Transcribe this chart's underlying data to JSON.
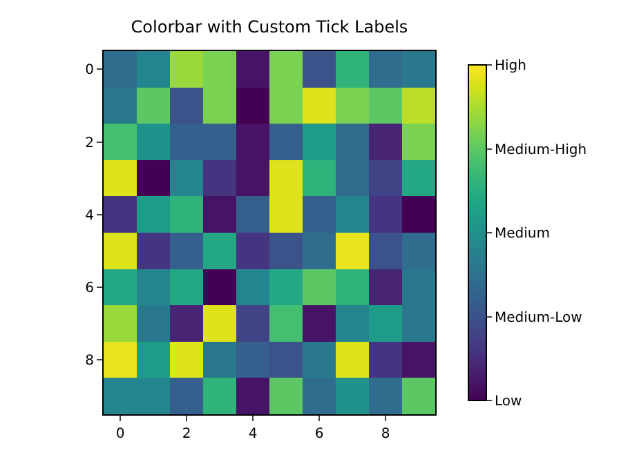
{
  "chart_data": {
    "type": "heatmap",
    "title": "Colorbar with Custom Tick Labels",
    "categories": [
      "0",
      null,
      "2",
      null,
      "4",
      null,
      "6",
      null,
      "8",
      null
    ],
    "y_categories": [
      "0",
      null,
      "2",
      null,
      "4",
      null,
      "6",
      null,
      "8",
      null
    ],
    "cells": [
      [
        0.35,
        0.45,
        0.85,
        0.8,
        0.05,
        0.8,
        0.25,
        0.65,
        0.35,
        0.4
      ],
      [
        0.4,
        0.75,
        0.25,
        0.8,
        0.0,
        0.8,
        0.95,
        0.8,
        0.75,
        0.9
      ],
      [
        0.7,
        0.5,
        0.3,
        0.3,
        0.05,
        0.3,
        0.55,
        0.35,
        0.1,
        0.8
      ],
      [
        0.95,
        0.0,
        0.45,
        0.15,
        0.05,
        0.95,
        0.65,
        0.35,
        0.2,
        0.6
      ],
      [
        0.15,
        0.55,
        0.65,
        0.05,
        0.3,
        0.95,
        0.3,
        0.45,
        0.15,
        0.0
      ],
      [
        0.95,
        0.15,
        0.3,
        0.6,
        0.15,
        0.25,
        0.35,
        0.97,
        0.25,
        0.35
      ],
      [
        0.6,
        0.45,
        0.6,
        0.0,
        0.45,
        0.6,
        0.75,
        0.65,
        0.1,
        0.4
      ],
      [
        0.85,
        0.4,
        0.1,
        0.95,
        0.2,
        0.7,
        0.05,
        0.45,
        0.55,
        0.4
      ],
      [
        0.97,
        0.55,
        0.95,
        0.4,
        0.3,
        0.25,
        0.4,
        0.95,
        0.15,
        0.05
      ],
      [
        0.45,
        0.45,
        0.3,
        0.65,
        0.05,
        0.75,
        0.35,
        0.5,
        0.35,
        0.75
      ]
    ],
    "clim": [
      0,
      1
    ],
    "cticks": [
      {
        "value": 0,
        "label": "Low"
      },
      {
        "value": 0.25,
        "label": "Medium-Low"
      },
      {
        "value": 0.5,
        "label": "Medium"
      },
      {
        "value": 0.75,
        "label": "Medium-High"
      },
      {
        "value": 1,
        "label": "High"
      }
    ]
  }
}
